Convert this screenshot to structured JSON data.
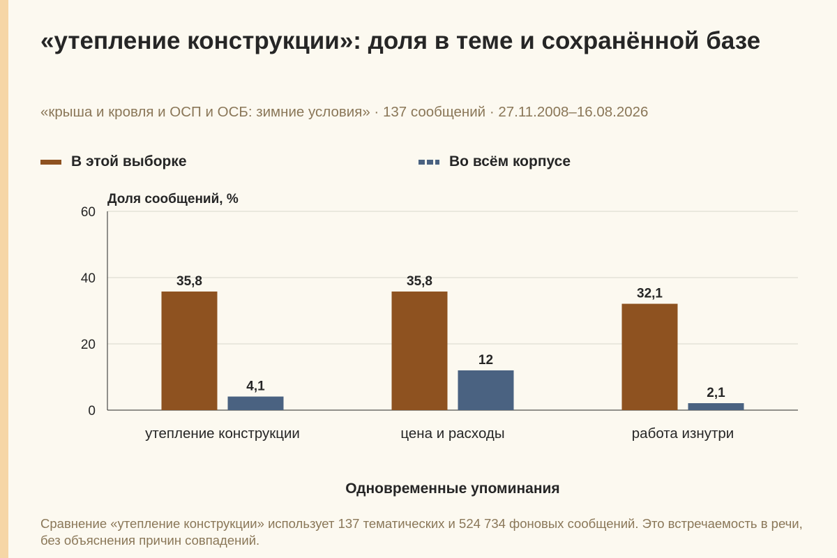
{
  "title": "«утепление конструкции»: доля в теме и сохранённой базе",
  "subtitle": "«крыша и кровля и ОСП и ОСБ: зимние условия» · 137 сообщений · 27.11.2008–16.08.2026",
  "footer": "Сравнение «утепление конструкции» использует 137 тематических и 524 734 фоновых сообщений. Это встречаемость в речи, без объяснения причин совпадений.",
  "colors": {
    "series1": "#8e5220",
    "series2": "#4a6281",
    "accent": "#f6d6a6",
    "background": "#fcf9f0"
  },
  "chart_data": {
    "type": "bar",
    "title": "«утепление конструкции»: доля в теме и сохранённой базе",
    "subtitle": "«крыша и кровля и ОСП и ОСБ: зимние условия» · 137 сообщений · 27.11.2008–16.08.2026",
    "categories": [
      "утепление конструкции",
      "цена и расходы",
      "работа изнутри"
    ],
    "series": [
      {
        "name": "В этой выборке",
        "values": [
          35.8,
          35.8,
          32.1
        ],
        "labels": [
          "35,8",
          "35,8",
          "32,1"
        ]
      },
      {
        "name": "Во всём корпусе",
        "values": [
          4.1,
          12,
          2.1
        ],
        "labels": [
          "4,1",
          "12",
          "2,1"
        ]
      }
    ],
    "xlabel": "Одновременные упоминания",
    "ylabel": "Доля сообщений, %",
    "ylim": [
      0,
      60
    ],
    "yticks": [
      0,
      20,
      40,
      60
    ],
    "grid": true,
    "legend": "top-left"
  }
}
